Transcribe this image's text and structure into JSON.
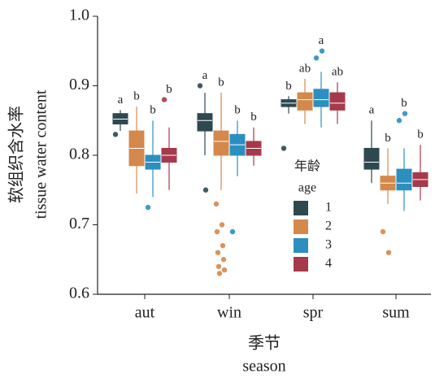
{
  "chart_data": {
    "type": "box",
    "y_label": [
      "软组织含水率",
      "tissue water content"
    ],
    "x_label": [
      "季节",
      "season"
    ],
    "legend_title": [
      "年龄",
      "age"
    ],
    "categories": [
      "aut",
      "win",
      "spr",
      "sum"
    ],
    "ylim": [
      0.6,
      1.0
    ],
    "yticks": [
      {
        "value": 0.6,
        "label": "0.6"
      },
      {
        "value": 0.7,
        "label": "0.7"
      },
      {
        "value": 0.8,
        "label": "0.8"
      },
      {
        "value": 0.9,
        "label": "0.9"
      },
      {
        "value": 1.0,
        "label": "1.0"
      }
    ],
    "series": [
      {
        "name": "1",
        "color": "#2e4850",
        "boxes": [
          {
            "whislo": 0.835,
            "q1": 0.845,
            "median": 0.852,
            "q3": 0.86,
            "whishi": 0.865
          },
          {
            "whislo": 0.8,
            "q1": 0.835,
            "median": 0.85,
            "q3": 0.86,
            "whishi": 0.89
          },
          {
            "whislo": 0.86,
            "q1": 0.87,
            "median": 0.875,
            "q3": 0.88,
            "whishi": 0.885
          },
          {
            "whislo": 0.76,
            "q1": 0.78,
            "median": 0.79,
            "q3": 0.81,
            "whishi": 0.85
          }
        ],
        "outliers": [
          [
            0.83
          ],
          [
            0.9,
            0.75
          ],
          [
            0.81
          ],
          []
        ],
        "letters": [
          "a",
          "a",
          "b",
          "a"
        ]
      },
      {
        "name": "2",
        "color": "#d4884c",
        "boxes": [
          {
            "whislo": 0.745,
            "q1": 0.785,
            "median": 0.81,
            "q3": 0.835,
            "whishi": 0.87
          },
          {
            "whislo": 0.75,
            "q1": 0.8,
            "median": 0.82,
            "q3": 0.835,
            "whishi": 0.89
          },
          {
            "whislo": 0.845,
            "q1": 0.865,
            "median": 0.88,
            "q3": 0.89,
            "whishi": 0.91
          },
          {
            "whislo": 0.73,
            "q1": 0.75,
            "median": 0.76,
            "q3": 0.77,
            "whishi": 0.81
          }
        ],
        "outliers": [
          [],
          [
            0.73,
            0.7,
            0.69,
            0.67,
            0.66,
            0.65,
            0.64,
            0.635,
            0.63
          ],
          [],
          [
            0.69,
            0.66
          ]
        ],
        "letters": [
          "b",
          "b",
          "ab",
          "b"
        ]
      },
      {
        "name": "3",
        "color": "#2b8fc0",
        "boxes": [
          {
            "whislo": 0.74,
            "q1": 0.78,
            "median": 0.79,
            "q3": 0.8,
            "whishi": 0.85
          },
          {
            "whislo": 0.77,
            "q1": 0.8,
            "median": 0.815,
            "q3": 0.83,
            "whishi": 0.85
          },
          {
            "whislo": 0.84,
            "q1": 0.87,
            "median": 0.88,
            "q3": 0.895,
            "whishi": 0.92
          },
          {
            "whislo": 0.72,
            "q1": 0.75,
            "median": 0.76,
            "q3": 0.78,
            "whishi": 0.81
          }
        ],
        "outliers": [
          [
            0.725
          ],
          [
            0.69
          ],
          [
            0.94,
            0.95
          ],
          [
            0.85,
            0.86
          ]
        ],
        "letters": [
          "b",
          "b",
          "a",
          "b"
        ]
      },
      {
        "name": "4",
        "color": "#a63a4a",
        "boxes": [
          {
            "whislo": 0.75,
            "q1": 0.79,
            "median": 0.8,
            "q3": 0.81,
            "whishi": 0.84
          },
          {
            "whislo": 0.785,
            "q1": 0.8,
            "median": 0.81,
            "q3": 0.82,
            "whishi": 0.84
          },
          {
            "whislo": 0.845,
            "q1": 0.865,
            "median": 0.875,
            "q3": 0.89,
            "whishi": 0.905
          },
          {
            "whislo": 0.735,
            "q1": 0.755,
            "median": 0.765,
            "q3": 0.775,
            "whishi": 0.815
          }
        ],
        "outliers": [
          [
            0.88
          ],
          [],
          [],
          []
        ],
        "letters": [
          "b",
          "b",
          "ab",
          "b"
        ]
      }
    ]
  }
}
